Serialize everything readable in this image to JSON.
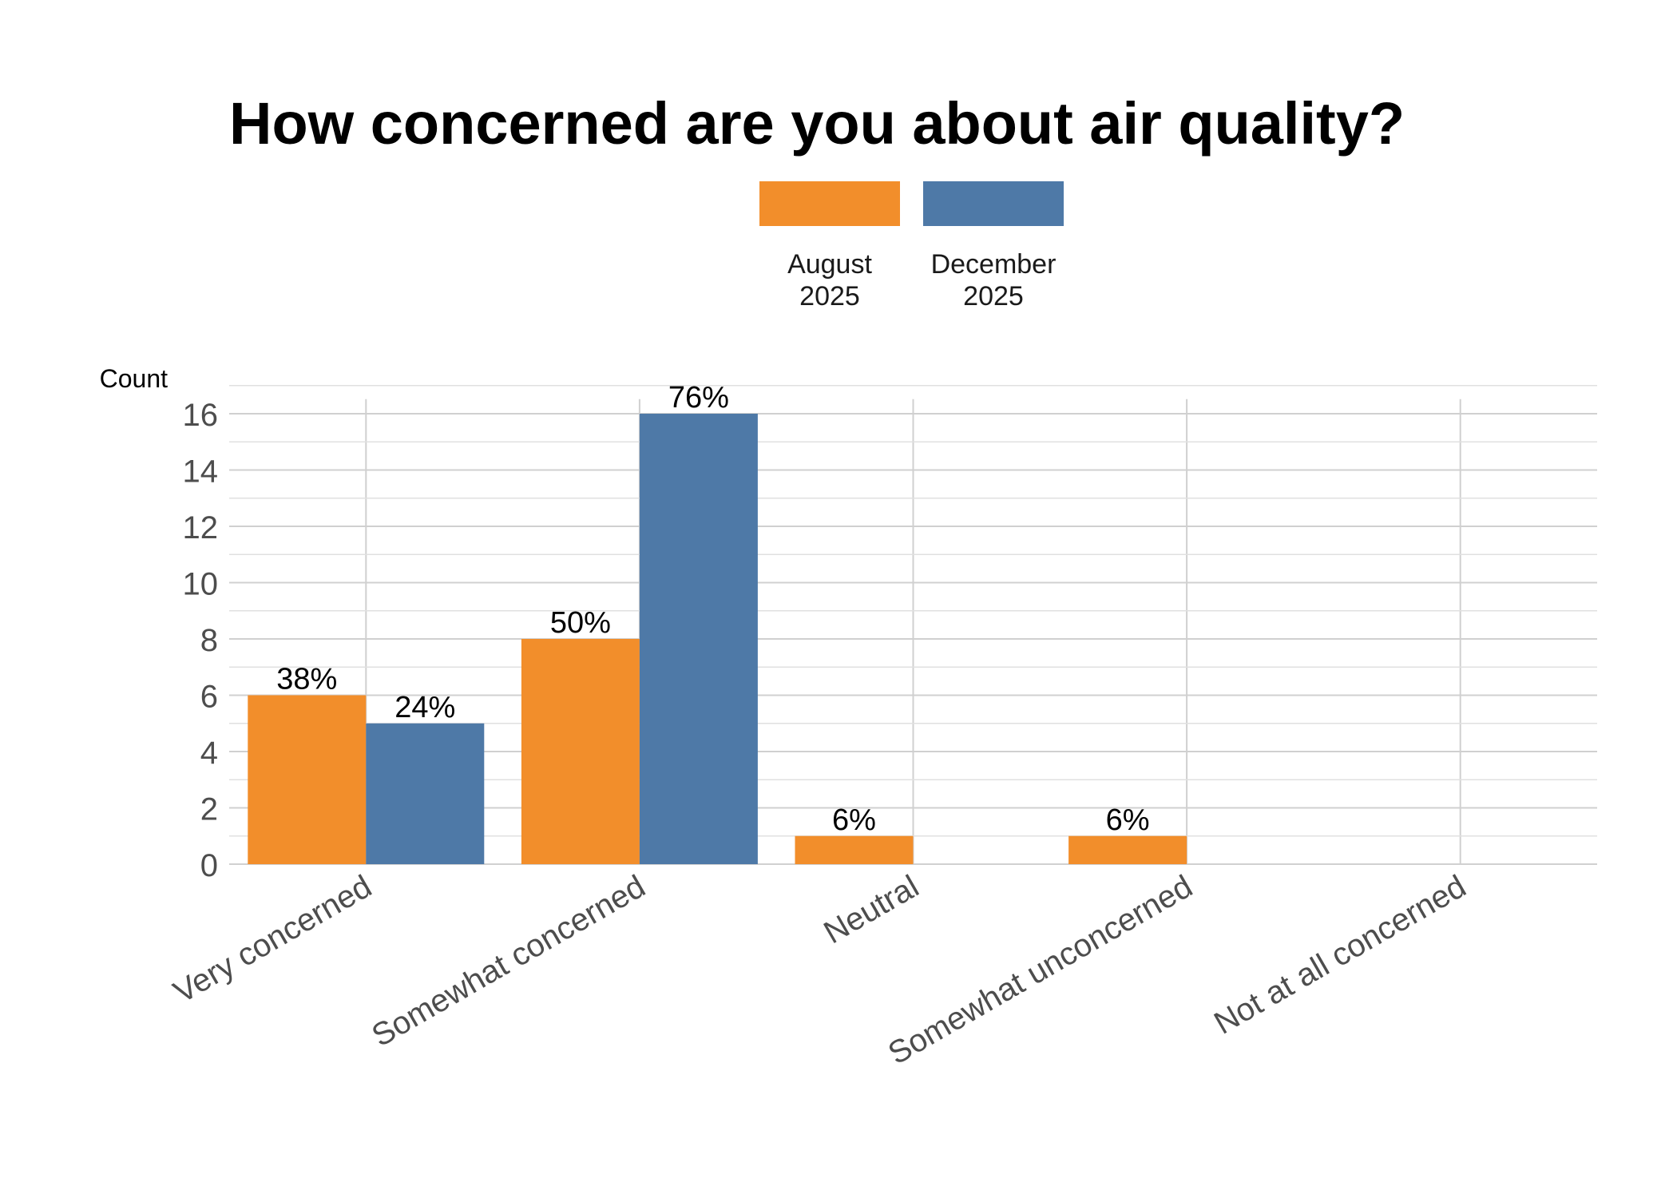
{
  "chart_data": {
    "type": "bar",
    "title": "How concerned are you about air quality?",
    "ylabel": "Count",
    "xlabel": "",
    "ylim": [
      0,
      17
    ],
    "yticks": [
      0,
      2,
      4,
      6,
      8,
      10,
      12,
      14,
      16
    ],
    "categories": [
      "Very concerned",
      "Somewhat concerned",
      "Neutral",
      "Somewhat unconcerned",
      "Not at all concerned"
    ],
    "series": [
      {
        "name": "August 2025",
        "legend_lines": [
          "August",
          "2025"
        ],
        "color": "#f28e2b",
        "values": [
          6,
          8,
          1,
          1,
          0
        ],
        "labels": [
          "38%",
          "50%",
          "6%",
          "6%",
          ""
        ]
      },
      {
        "name": "December 2025",
        "legend_lines": [
          "December",
          "2025"
        ],
        "color": "#4e79a7",
        "values": [
          5,
          16,
          0,
          0,
          0
        ],
        "labels": [
          "24%",
          "76%",
          "",
          "",
          ""
        ]
      }
    ],
    "legend_position": "top",
    "grid": true
  }
}
